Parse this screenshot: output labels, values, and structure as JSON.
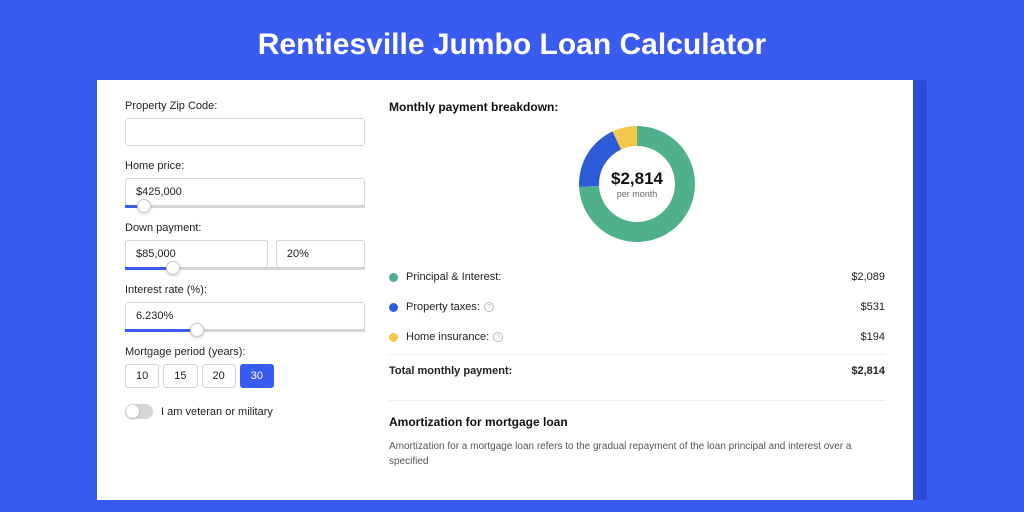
{
  "title": "Rentiesville Jumbo Loan Calculator",
  "form": {
    "zip_label": "Property Zip Code:",
    "zip_value": "",
    "home_price_label": "Home price:",
    "home_price_value": "$425,000",
    "home_price_slider_pct": 8,
    "down_label": "Down payment:",
    "down_value": "$85,000",
    "down_pct": "20%",
    "down_slider_pct": 20,
    "rate_label": "Interest rate (%):",
    "rate_value": "6.230%",
    "rate_slider_pct": 30,
    "period_label": "Mortgage period (years):",
    "periods": [
      "10",
      "15",
      "20",
      "30"
    ],
    "period_active_index": 3,
    "veteran_label": "I am veteran or military",
    "veteran_on": false
  },
  "breakdown": {
    "title": "Monthly payment breakdown:",
    "center_amount": "$2,814",
    "center_sub": "per month",
    "rows": [
      {
        "label": "Principal & Interest:",
        "value": "$2,089",
        "color": "#4fb08a",
        "info": false
      },
      {
        "label": "Property taxes:",
        "value": "$531",
        "color": "#2e5cd8",
        "info": true
      },
      {
        "label": "Home insurance:",
        "value": "$194",
        "color": "#f2c94c",
        "info": true
      }
    ],
    "total_label": "Total monthly payment:",
    "total_value": "$2,814",
    "donut": {
      "slices": [
        {
          "color": "#4fb08a",
          "pct": 74.2
        },
        {
          "color": "#2e5cd8",
          "pct": 18.9
        },
        {
          "color": "#f2c94c",
          "pct": 6.9
        }
      ]
    }
  },
  "amortization": {
    "title": "Amortization for mortgage loan",
    "text": "Amortization for a mortgage loan refers to the gradual repayment of the loan principal and interest over a specified"
  },
  "colors": {
    "page_bg": "#3a5bf0",
    "shadow_bg": "#2e4bd8",
    "card_bg": "#ffffff"
  }
}
